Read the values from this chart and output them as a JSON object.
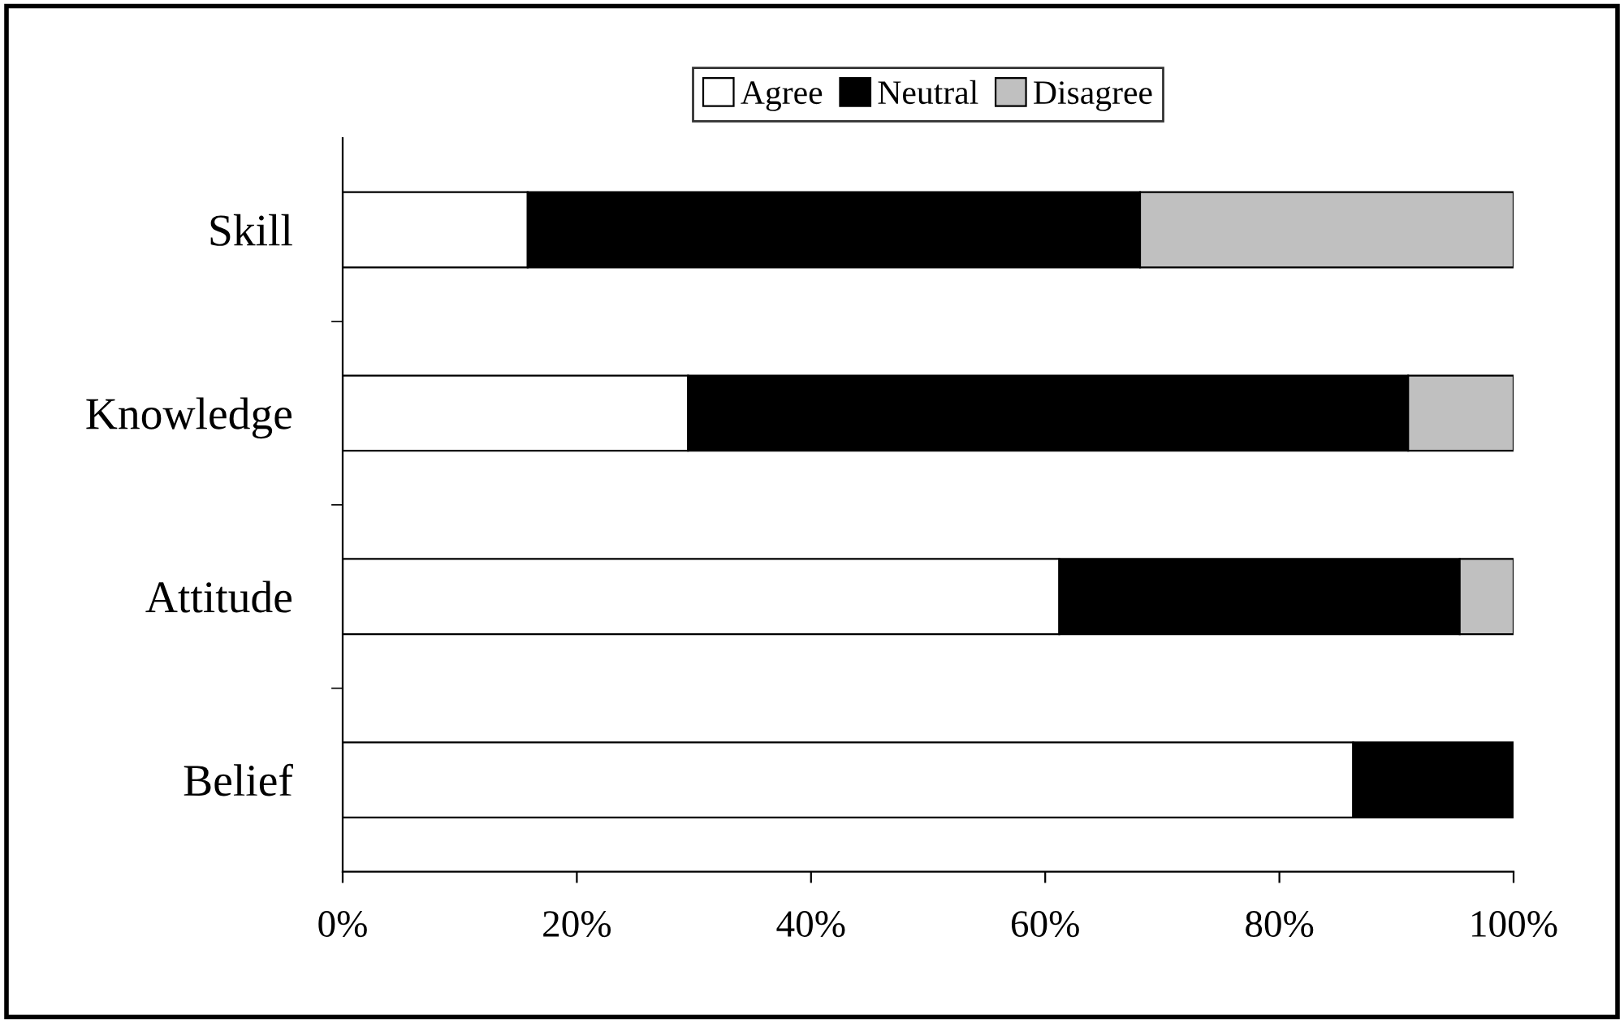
{
  "chart_data": {
    "type": "bar",
    "orientation": "horizontal",
    "stacked": true,
    "categories": [
      "Skill",
      "Knowledge",
      "Attitude",
      "Belief"
    ],
    "series": [
      {
        "name": "Agree",
        "color": "#ffffff",
        "values": [
          15.8,
          29.5,
          61.2,
          86.3
        ]
      },
      {
        "name": "Neutral",
        "color": "#000000",
        "values": [
          52.3,
          61.5,
          34.2,
          13.7
        ]
      },
      {
        "name": "Disagree",
        "color": "#c0c0c0",
        "values": [
          31.9,
          9.0,
          4.6,
          0
        ]
      }
    ],
    "xlim": [
      0,
      100
    ],
    "xticks": [
      {
        "value": 0,
        "label": "0%"
      },
      {
        "value": 20,
        "label": "20%"
      },
      {
        "value": 40,
        "label": "40%"
      },
      {
        "value": 60,
        "label": "60%"
      },
      {
        "value": 80,
        "label": "80%"
      },
      {
        "value": 100,
        "label": "100%"
      }
    ],
    "grid": false,
    "legend": "top"
  }
}
